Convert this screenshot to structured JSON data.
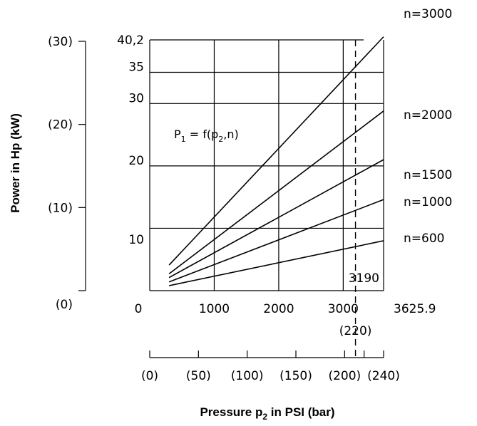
{
  "chart_data": {
    "type": "line",
    "ylabel": "Power in Hp (kW)",
    "xlabel_main": "Pressure p",
    "xlabel_sub": "2",
    "xlabel_rest": " in PSI (bar)",
    "formula_main": "P",
    "formula_sub1": "1",
    "formula_mid": " = f(p",
    "formula_sub2": "2",
    "formula_end": ",n)",
    "x_ticks": [
      "0",
      "1000",
      "2000",
      "3000",
      "3625.9"
    ],
    "x_tick_values": [
      0,
      1000,
      2000,
      3000,
      3625.9
    ],
    "y_ticks": [
      "10",
      "20",
      "30",
      "35",
      "40,2"
    ],
    "y_tick_values": [
      10,
      20,
      30,
      35,
      40.2
    ],
    "kw_ticks": [
      "(0)",
      "(10)",
      "(20)",
      "(30)"
    ],
    "kw_tick_values": [
      0,
      10,
      20,
      30
    ],
    "bar_ticks": [
      "(0)",
      "(50)",
      "(100)",
      "(150)",
      "(200)",
      "(240)"
    ],
    "bar_tick_values": [
      0,
      50,
      100,
      150,
      200,
      240
    ],
    "marker_psi": "3190",
    "marker_psi_value": 3190,
    "marker_bar": "(220)",
    "marker_bar_value": 220,
    "xlim": [
      0,
      3625.9
    ],
    "ylim": [
      0,
      40.2
    ],
    "series": [
      {
        "name": "n=3000",
        "x": [
          300,
          3625.9
        ],
        "y": [
          4.1,
          40.7
        ]
      },
      {
        "name": "n=2000",
        "x": [
          300,
          3625.9
        ],
        "y": [
          2.7,
          28.8
        ]
      },
      {
        "name": "n=1500",
        "x": [
          300,
          3625.9
        ],
        "y": [
          2.1,
          21.0
        ]
      },
      {
        "name": "n=1000",
        "x": [
          300,
          3625.9
        ],
        "y": [
          1.4,
          14.6
        ]
      },
      {
        "name": "n=600",
        "x": [
          300,
          3625.9
        ],
        "y": [
          0.8,
          8.0
        ]
      }
    ]
  }
}
